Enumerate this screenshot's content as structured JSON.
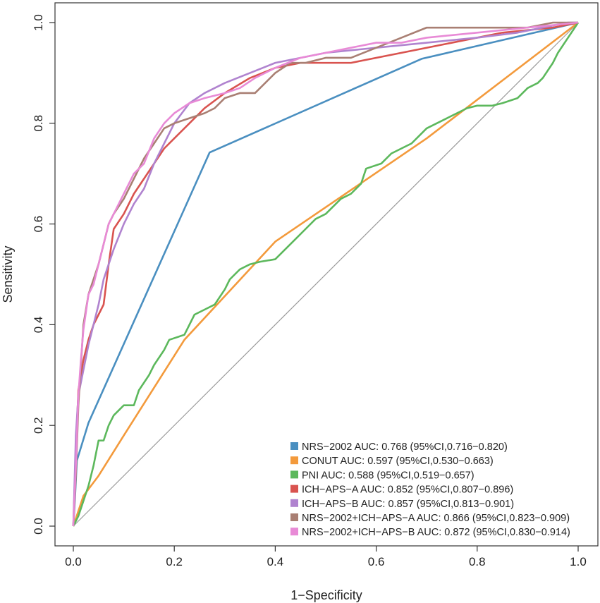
{
  "chart_data": {
    "type": "line",
    "title": "",
    "xlabel": "1−Specificity",
    "ylabel": "Sensitivity",
    "xlim": [
      0,
      1
    ],
    "ylim": [
      0,
      1
    ],
    "xticks": [
      "0.0",
      "0.2",
      "0.4",
      "0.6",
      "0.8",
      "1.0"
    ],
    "yticks": [
      "0.0",
      "0.2",
      "0.4",
      "0.6",
      "0.8",
      "1.0"
    ],
    "grid": false,
    "legend_position": "bottom-right",
    "reference_line": {
      "x": [
        0,
        1
      ],
      "y": [
        0,
        1
      ],
      "color": "#9a9a9a"
    },
    "series": [
      {
        "name": "NRS−2002 AUC: 0.768 (95%CI,0.716−0.820)",
        "color": "#4a8fc0",
        "x": [
          0,
          0.003,
          0.007,
          0.03,
          0.27,
          0.69,
          1.0
        ],
        "y": [
          0,
          0.05,
          0.13,
          0.205,
          0.742,
          0.928,
          1.0
        ]
      },
      {
        "name": "CONUT AUC: 0.597 (95%CI,0.530−0.663)",
        "color": "#f39a3c",
        "x": [
          0,
          0.02,
          0.05,
          0.1,
          0.22,
          0.4,
          0.7,
          1.0
        ],
        "y": [
          0,
          0.06,
          0.1,
          0.18,
          0.37,
          0.565,
          0.77,
          1.0
        ]
      },
      {
        "name": "PNI AUC: 0.588 (95%CI,0.519−0.657)",
        "color": "#5cb85c",
        "x": [
          0,
          0.01,
          0.02,
          0.03,
          0.04,
          0.05,
          0.06,
          0.07,
          0.08,
          0.09,
          0.1,
          0.12,
          0.13,
          0.15,
          0.16,
          0.18,
          0.19,
          0.22,
          0.24,
          0.26,
          0.28,
          0.3,
          0.31,
          0.33,
          0.35,
          0.37,
          0.4,
          0.42,
          0.44,
          0.46,
          0.48,
          0.5,
          0.52,
          0.53,
          0.55,
          0.57,
          0.58,
          0.61,
          0.63,
          0.65,
          0.67,
          0.69,
          0.7,
          0.72,
          0.74,
          0.76,
          0.78,
          0.8,
          0.83,
          0.85,
          0.88,
          0.9,
          0.92,
          0.93,
          0.95,
          0.96,
          0.98,
          1.0
        ],
        "y": [
          0,
          0.02,
          0.05,
          0.08,
          0.12,
          0.17,
          0.17,
          0.2,
          0.22,
          0.23,
          0.24,
          0.24,
          0.27,
          0.3,
          0.32,
          0.35,
          0.37,
          0.38,
          0.42,
          0.43,
          0.44,
          0.47,
          0.49,
          0.51,
          0.52,
          0.525,
          0.53,
          0.55,
          0.57,
          0.59,
          0.61,
          0.62,
          0.64,
          0.65,
          0.66,
          0.68,
          0.71,
          0.72,
          0.74,
          0.75,
          0.76,
          0.78,
          0.79,
          0.8,
          0.81,
          0.82,
          0.83,
          0.835,
          0.835,
          0.84,
          0.85,
          0.87,
          0.88,
          0.89,
          0.92,
          0.94,
          0.97,
          1.0
        ]
      },
      {
        "name": "ICH−APS−A AUC: 0.852 (95%CI,0.807−0.896)",
        "color": "#d9534f",
        "x": [
          0,
          0.005,
          0.01,
          0.02,
          0.03,
          0.04,
          0.05,
          0.06,
          0.07,
          0.08,
          0.1,
          0.12,
          0.14,
          0.16,
          0.18,
          0.2,
          0.23,
          0.26,
          0.3,
          0.35,
          0.4,
          0.45,
          0.55,
          0.65,
          0.75,
          0.85,
          0.95,
          1.0
        ],
        "y": [
          0,
          0.15,
          0.27,
          0.33,
          0.37,
          0.4,
          0.42,
          0.44,
          0.52,
          0.59,
          0.62,
          0.66,
          0.69,
          0.72,
          0.75,
          0.77,
          0.8,
          0.83,
          0.86,
          0.89,
          0.91,
          0.92,
          0.92,
          0.94,
          0.96,
          0.98,
          0.99,
          1.0
        ]
      },
      {
        "name": "ICH−APS−B AUC: 0.857 (95%CI,0.813−0.901)",
        "color": "#b083cf",
        "x": [
          0,
          0.005,
          0.01,
          0.02,
          0.03,
          0.04,
          0.05,
          0.06,
          0.08,
          0.1,
          0.12,
          0.14,
          0.16,
          0.18,
          0.2,
          0.23,
          0.26,
          0.3,
          0.35,
          0.4,
          0.5,
          0.6,
          0.7,
          0.8,
          0.88,
          0.93,
          0.98,
          1.0
        ],
        "y": [
          0,
          0.18,
          0.26,
          0.31,
          0.36,
          0.4,
          0.44,
          0.49,
          0.55,
          0.6,
          0.64,
          0.67,
          0.72,
          0.76,
          0.8,
          0.84,
          0.86,
          0.88,
          0.9,
          0.92,
          0.94,
          0.95,
          0.96,
          0.97,
          0.98,
          0.99,
          1.0,
          1.0
        ]
      },
      {
        "name": "NRS−2002+ICH−APS−A AUC: 0.866 (95%CI,0.823−0.909)",
        "color": "#a97f73",
        "x": [
          0,
          0.005,
          0.01,
          0.015,
          0.02,
          0.03,
          0.04,
          0.05,
          0.06,
          0.07,
          0.08,
          0.1,
          0.12,
          0.14,
          0.16,
          0.18,
          0.2,
          0.23,
          0.26,
          0.28,
          0.3,
          0.33,
          0.36,
          0.4,
          0.43,
          0.46,
          0.5,
          0.55,
          0.6,
          0.65,
          0.7,
          0.8,
          0.9,
          0.95,
          1.0
        ],
        "y": [
          0,
          0.1,
          0.24,
          0.32,
          0.4,
          0.46,
          0.49,
          0.52,
          0.56,
          0.6,
          0.62,
          0.65,
          0.69,
          0.73,
          0.76,
          0.79,
          0.8,
          0.81,
          0.82,
          0.83,
          0.85,
          0.86,
          0.86,
          0.9,
          0.92,
          0.92,
          0.93,
          0.93,
          0.95,
          0.97,
          0.99,
          0.99,
          0.99,
          1.0,
          1.0
        ]
      },
      {
        "name": "NRS−2002+ICH−APS−B AUC: 0.872 (95%CI,0.830−0.914)",
        "color": "#e88ad6",
        "x": [
          0,
          0.005,
          0.01,
          0.015,
          0.02,
          0.03,
          0.04,
          0.05,
          0.06,
          0.07,
          0.08,
          0.1,
          0.12,
          0.14,
          0.16,
          0.18,
          0.2,
          0.23,
          0.26,
          0.3,
          0.33,
          0.36,
          0.4,
          0.45,
          0.5,
          0.55,
          0.6,
          0.65,
          0.7,
          0.8,
          0.9,
          1.0
        ],
        "y": [
          0,
          0.12,
          0.26,
          0.33,
          0.39,
          0.46,
          0.48,
          0.52,
          0.56,
          0.6,
          0.62,
          0.66,
          0.7,
          0.72,
          0.77,
          0.8,
          0.82,
          0.84,
          0.85,
          0.86,
          0.87,
          0.89,
          0.91,
          0.93,
          0.94,
          0.95,
          0.96,
          0.96,
          0.97,
          0.98,
          0.99,
          1.0
        ]
      }
    ]
  }
}
